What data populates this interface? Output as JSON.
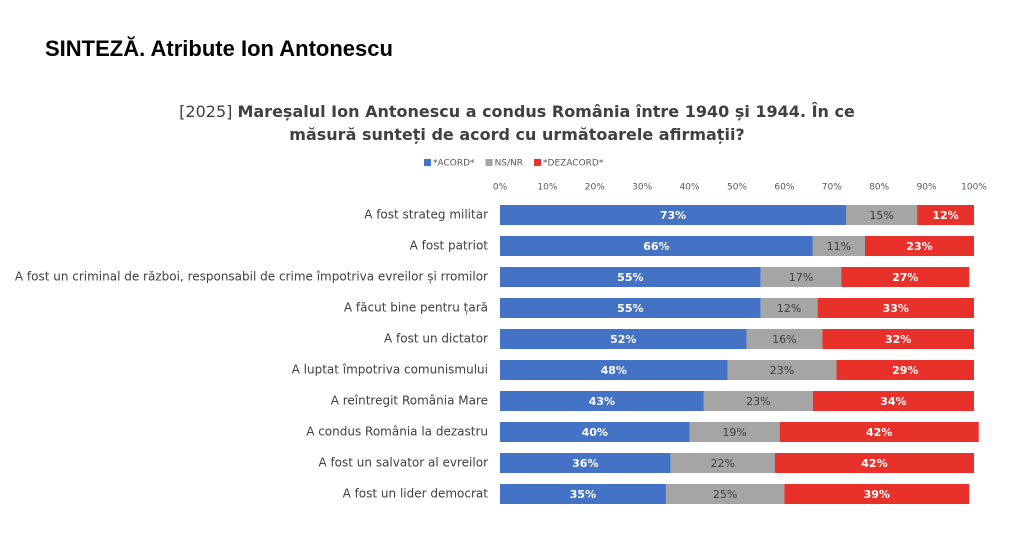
{
  "chart_data": {
    "type": "stacked_barh",
    "page_title": "SINTEZĂ. Atribute Ion Antonescu",
    "title_tag": "[2025]",
    "title": "Mareșalul Ion Antonescu a condus România între 1940 și 1944. În ce măsură sunteți de acord cu următoarele afirmații?",
    "categories": [
      "A fost strateg militar",
      "A fost patriot",
      "A fost un criminal de război, responsabil de crime împotriva evreilor și rromilor",
      "A făcut bine pentru țară",
      "A fost un dictator",
      "A luptat împotriva comunismului",
      "A reîntregit România Mare",
      "A condus România la dezastru",
      "A fost un salvator al evreilor",
      "A fost un lider democrat"
    ],
    "series": [
      {
        "name": "*ACORD*",
        "color": "#4472c4",
        "label_color": "#ffffff",
        "values": [
          73,
          66,
          55,
          55,
          52,
          48,
          43,
          40,
          36,
          35
        ],
        "value_labels": [
          "73%",
          "66%",
          "55%",
          "55%",
          "52%",
          "48%",
          "43%",
          "40%",
          "36%",
          "35%"
        ]
      },
      {
        "name": "NS/NR",
        "color": "#a5a5a5",
        "label_color": "#404040",
        "values": [
          15,
          11,
          17,
          12,
          16,
          23,
          23,
          19,
          22,
          25
        ],
        "value_labels": [
          "15%",
          "11%",
          "17%",
          "12%",
          "16%",
          "23%",
          "23%",
          "19%",
          "22%",
          "25%"
        ]
      },
      {
        "name": "*DEZACORD*",
        "color": "#e8312a",
        "label_color": "#ffffff",
        "values": [
          12,
          23,
          27,
          33,
          32,
          29,
          34,
          42,
          42,
          39
        ],
        "value_labels": [
          "12%",
          "23%",
          "27%",
          "33%",
          "32%",
          "29%",
          "34%",
          "42%",
          "42%",
          "39%"
        ]
      }
    ],
    "xlim": [
      0,
      100
    ],
    "xticks": [
      {
        "value": 0,
        "label": "0%"
      },
      {
        "value": 10,
        "label": "10%"
      },
      {
        "value": 20,
        "label": "20%"
      },
      {
        "value": 30,
        "label": "30%"
      },
      {
        "value": 40,
        "label": "40%"
      },
      {
        "value": 50,
        "label": "50%"
      },
      {
        "value": 60,
        "label": "60%"
      },
      {
        "value": 70,
        "label": "70%"
      },
      {
        "value": 80,
        "label": "80%"
      },
      {
        "value": 90,
        "label": "90%"
      },
      {
        "value": 100,
        "label": "100%"
      }
    ]
  }
}
